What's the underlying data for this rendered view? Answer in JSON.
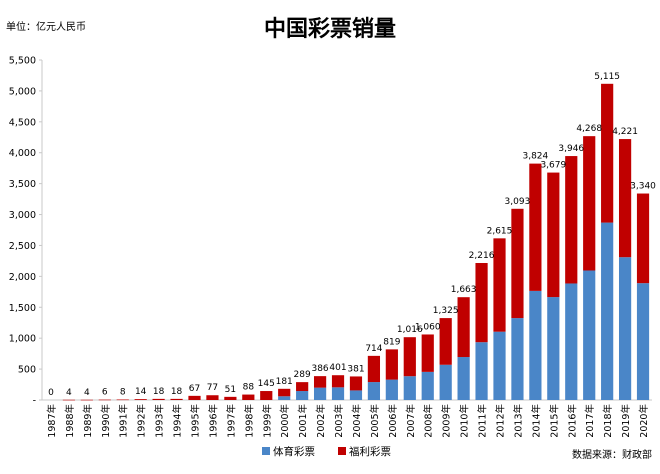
{
  "chart_data": {
    "type": "bar",
    "stacked": true,
    "title": "中国彩票销量",
    "unit_label": "单位：亿元人民币",
    "source_label": "数据来源：财政部",
    "categories": [
      "1987年",
      "1988年",
      "1989年",
      "1990年",
      "1991年",
      "1992年",
      "1993年",
      "1994年",
      "1995年",
      "1996年",
      "1997年",
      "1998年",
      "1999年",
      "2000年",
      "2001年",
      "2002年",
      "2003年",
      "2004年",
      "2005年",
      "2006年",
      "2007年",
      "2008年",
      "2009年",
      "2010年",
      "2011年",
      "2012年",
      "2013年",
      "2014年",
      "2015年",
      "2016年",
      "2017年",
      "2018年",
      "2019年",
      "2020年"
    ],
    "series": [
      {
        "name": "体育彩票",
        "color": "#4a86c8",
        "values": [
          0,
          0,
          0,
          0,
          0,
          0,
          0,
          0,
          0,
          0,
          0,
          0,
          0,
          60,
          145,
          200,
          205,
          155,
          290,
          330,
          385,
          455,
          570,
          695,
          935,
          1105,
          1325,
          1765,
          1665,
          1885,
          2095,
          2870,
          2310,
          1890
        ]
      },
      {
        "name": "福利彩票",
        "color": "#c00000",
        "values": [
          0,
          4,
          4,
          6,
          8,
          14,
          18,
          18,
          67,
          77,
          51,
          88,
          145,
          121,
          144,
          186,
          196,
          226,
          424,
          489,
          631,
          605,
          755,
          968,
          1281,
          1510,
          1768,
          2059,
          2014,
          2061,
          2173,
          2245,
          1911,
          1450
        ]
      }
    ],
    "totals": [
      0,
      4,
      4,
      6,
      8,
      14,
      18,
      18,
      67,
      77,
      51,
      88,
      145,
      181,
      289,
      386,
      401,
      381,
      714,
      819,
      1016,
      1060,
      1325,
      1663,
      2216,
      2615,
      3093,
      3824,
      3679,
      3946,
      4268,
      5115,
      4221,
      3340
    ],
    "total_labels": [
      "0",
      "4",
      "4",
      "6",
      "8",
      "14",
      "18",
      "18",
      "67",
      "77",
      "51",
      "88",
      "145",
      "181",
      "289",
      "386",
      "401",
      "381",
      "714",
      "819",
      "1,016",
      "1,060",
      "1,325",
      "1,663",
      "2,216",
      "2,615",
      "3,093",
      "3,824",
      "3,679",
      "3,946",
      "4,268",
      "5,115",
      "4,221",
      "3,340"
    ],
    "ylim": [
      0,
      5500
    ],
    "yticks": [
      0,
      500,
      1000,
      1500,
      2000,
      2500,
      3000,
      3500,
      4000,
      4500,
      5000,
      5500
    ],
    "ytick_labels": [
      "-",
      "500",
      "1,000",
      "1,500",
      "2,000",
      "2,500",
      "3,000",
      "3,500",
      "4,000",
      "4,500",
      "5,000",
      "5,500"
    ],
    "grid": false,
    "legend_position": "bottom-center"
  }
}
